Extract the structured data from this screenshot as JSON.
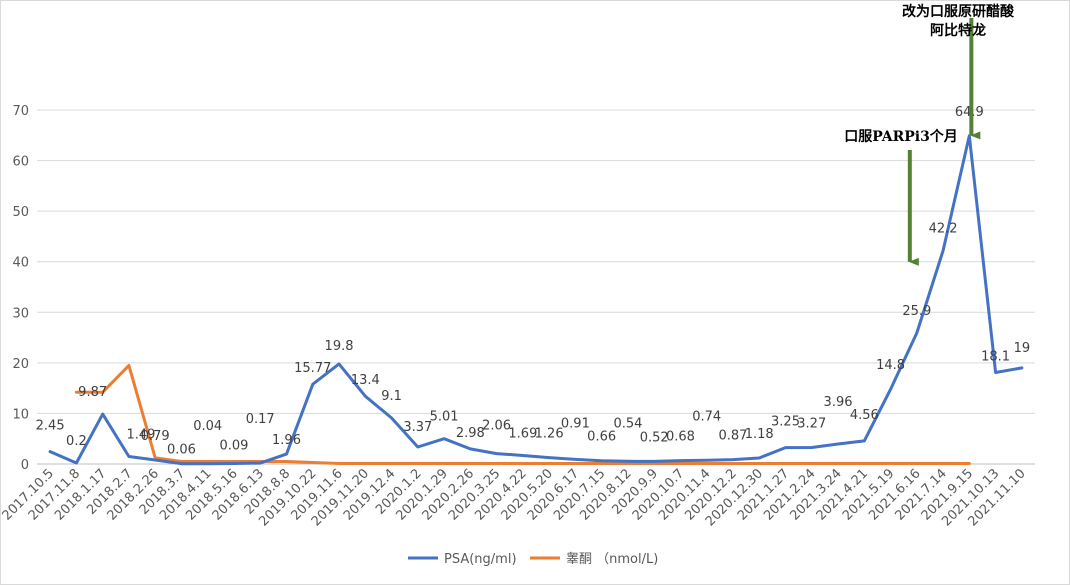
{
  "chart_data": {
    "type": "line",
    "title": "",
    "xlabel": "",
    "ylabel": "",
    "ylim": [
      0,
      70
    ],
    "yticks": [
      0,
      10,
      20,
      30,
      40,
      50,
      60,
      70
    ],
    "grid": true,
    "legend_position": "bottom",
    "categories": [
      "2017.10.5",
      "2017.11.8",
      "2018.1.17",
      "2018.2.7",
      "2018.2.26",
      "2018.3.7",
      "2018.4.11",
      "2018.5.16",
      "2018.6.13",
      "2018.8.8",
      "2019.10.22",
      "2019.11.6",
      "2019.11.20",
      "2019.12.4",
      "2020.1.2",
      "2020.1.29",
      "2020.2.26",
      "2020.3.25",
      "2020.4.22",
      "2020.5.20",
      "2020.6.17",
      "2020.7.15",
      "2020.8.12",
      "2020.9.9",
      "2020.10.7",
      "2020.11.4",
      "2020.12.2",
      "2020.12.30",
      "2021.1.27",
      "2021.2.24",
      "2021.3.24",
      "2021.4.21",
      "2021.5.19",
      "2021.6.16",
      "2021.7.14",
      "2021.9.15",
      "2021.10.13",
      "2021.11.10"
    ],
    "series": [
      {
        "name": "PSA(ng/ml)",
        "color": "#4472C4",
        "values": [
          2.45,
          0.2,
          9.87,
          1.49,
          0.79,
          0.06,
          0.04,
          0.09,
          0.17,
          1.96,
          15.77,
          19.8,
          13.4,
          9.1,
          3.37,
          5.01,
          2.98,
          2.06,
          1.69,
          1.26,
          0.91,
          0.66,
          0.54,
          0.52,
          0.68,
          0.74,
          0.87,
          1.18,
          3.25,
          3.27,
          3.96,
          4.56,
          14.8,
          25.9,
          42.2,
          64.9,
          18.1,
          19
        ],
        "labels": [
          "2.45",
          "0.2",
          "9.87",
          "1.49",
          "0.79",
          "0.06",
          "0.04",
          "0.09",
          "0.17",
          "1.96",
          "15.77",
          "19.8",
          "13.4",
          "9.1",
          "3.37",
          "5.01",
          "2.98",
          "2.06",
          "1.69",
          "1.26",
          "0.91",
          "0.66",
          "0.54",
          "0.52",
          "0.68",
          "0.74",
          "0.87",
          "1.18",
          "3.25",
          "3.27",
          "3.96",
          "4.56",
          "14.8",
          "25.9",
          "42.2",
          "64.9",
          "18.1",
          "19"
        ]
      },
      {
        "name": "睾酮 （nmol/L)",
        "color": "#ED7D31",
        "values": [
          null,
          14.2,
          14.2,
          19.5,
          1.2,
          0.5,
          0.5,
          0.5,
          0.5,
          0.5,
          0.3,
          0.1,
          0.1,
          0.1,
          0.1,
          0.1,
          0.1,
          0.1,
          0.1,
          0.1,
          0.1,
          0.1,
          0.1,
          0.1,
          0.1,
          0.1,
          0.1,
          0.1,
          0.1,
          0.1,
          0.1,
          0.1,
          0.1,
          0.1,
          0.1,
          0.1,
          null,
          null
        ]
      }
    ],
    "annotations": [
      {
        "text": "口服PARPi3个月",
        "arrow_color": "#548235",
        "at_category": "2021.6.16",
        "arrow_to_value": 38
      },
      {
        "text_lines": [
          "改为口服原研醋酸",
          "阿比特龙"
        ],
        "arrow_color": "#548235",
        "at_category": "2021.9.15",
        "arrow_to_value": 63
      }
    ]
  }
}
